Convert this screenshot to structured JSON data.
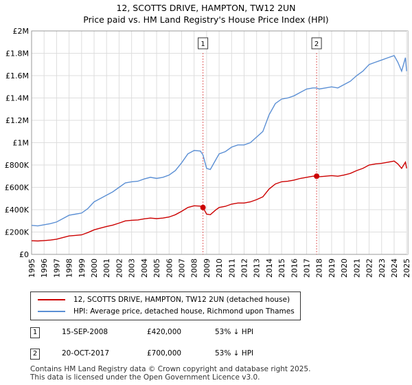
{
  "header": {
    "title": "12, SCOTTS DRIVE, HAMPTON, TW12 2UN",
    "subtitle": "Price paid vs. HM Land Registry's House Price Index (HPI)"
  },
  "legend": {
    "items": [
      {
        "label": "12, SCOTTS DRIVE, HAMPTON, TW12 2UN (detached house)",
        "color": "#cc0000"
      },
      {
        "label": "HPI: Average price, detached house, Richmond upon Thames",
        "color": "#5b8fd4"
      }
    ]
  },
  "transactions": [
    {
      "num": "1",
      "date": "15-SEP-2008",
      "price": "£420,000",
      "hpi": "53% ↓ HPI"
    },
    {
      "num": "2",
      "date": "20-OCT-2017",
      "price": "£700,000",
      "hpi": "53% ↓ HPI"
    }
  ],
  "footer": {
    "line1": "Contains HM Land Registry data © Crown copyright and database right 2025.",
    "line2": "This data is licensed under the Open Government Licence v3.0."
  },
  "colors": {
    "property": "#cc0000",
    "hpi": "#5b8fd4",
    "grid": "#dddddd",
    "marker_line": "#e06060"
  },
  "chart_data": {
    "type": "line",
    "title": "12, SCOTTS DRIVE, HAMPTON, TW12 2UN",
    "subtitle": "Price paid vs. HM Land Registry's House Price Index (HPI)",
    "xlabel": "",
    "ylabel": "",
    "xlim": [
      1995,
      2025.1
    ],
    "ylim": [
      0,
      2000000
    ],
    "yticks": [
      {
        "v": 0,
        "label": "£0"
      },
      {
        "v": 200000,
        "label": "£200K"
      },
      {
        "v": 400000,
        "label": "£400K"
      },
      {
        "v": 600000,
        "label": "£600K"
      },
      {
        "v": 800000,
        "label": "£800K"
      },
      {
        "v": 1000000,
        "label": "£1M"
      },
      {
        "v": 1200000,
        "label": "£1.2M"
      },
      {
        "v": 1400000,
        "label": "£1.4M"
      },
      {
        "v": 1600000,
        "label": "£1.6M"
      },
      {
        "v": 1800000,
        "label": "£1.8M"
      },
      {
        "v": 2000000,
        "label": "£2M"
      }
    ],
    "xticks": [
      "1995",
      "1996",
      "1997",
      "1998",
      "1999",
      "2000",
      "2001",
      "2002",
      "2003",
      "2004",
      "2005",
      "2006",
      "2007",
      "2008",
      "2009",
      "2010",
      "2011",
      "2012",
      "2013",
      "2014",
      "2015",
      "2016",
      "2017",
      "2018",
      "2019",
      "2020",
      "2021",
      "2022",
      "2023",
      "2024",
      "2025"
    ],
    "grid": true,
    "series": [
      {
        "name": "HPI: Average price, detached house, Richmond upon Thames",
        "color": "#5b8fd4",
        "points": [
          [
            1995.0,
            260000
          ],
          [
            1995.5,
            255000
          ],
          [
            1996.0,
            265000
          ],
          [
            1996.5,
            275000
          ],
          [
            1997.0,
            290000
          ],
          [
            1997.5,
            320000
          ],
          [
            1998.0,
            350000
          ],
          [
            1998.5,
            360000
          ],
          [
            1999.0,
            370000
          ],
          [
            1999.5,
            410000
          ],
          [
            2000.0,
            470000
          ],
          [
            2000.5,
            500000
          ],
          [
            2001.0,
            530000
          ],
          [
            2001.5,
            560000
          ],
          [
            2002.0,
            600000
          ],
          [
            2002.5,
            640000
          ],
          [
            2003.0,
            650000
          ],
          [
            2003.5,
            655000
          ],
          [
            2004.0,
            675000
          ],
          [
            2004.5,
            690000
          ],
          [
            2005.0,
            680000
          ],
          [
            2005.5,
            690000
          ],
          [
            2006.0,
            710000
          ],
          [
            2006.5,
            750000
          ],
          [
            2007.0,
            820000
          ],
          [
            2007.5,
            900000
          ],
          [
            2008.0,
            930000
          ],
          [
            2008.5,
            925000
          ],
          [
            2008.71,
            890000
          ],
          [
            2009.0,
            770000
          ],
          [
            2009.3,
            760000
          ],
          [
            2009.7,
            840000
          ],
          [
            2010.0,
            900000
          ],
          [
            2010.5,
            920000
          ],
          [
            2011.0,
            960000
          ],
          [
            2011.5,
            980000
          ],
          [
            2012.0,
            980000
          ],
          [
            2012.5,
            1000000
          ],
          [
            2013.0,
            1050000
          ],
          [
            2013.5,
            1100000
          ],
          [
            2014.0,
            1250000
          ],
          [
            2014.5,
            1350000
          ],
          [
            2015.0,
            1390000
          ],
          [
            2015.5,
            1400000
          ],
          [
            2016.0,
            1420000
          ],
          [
            2016.5,
            1450000
          ],
          [
            2017.0,
            1480000
          ],
          [
            2017.5,
            1490000
          ],
          [
            2017.8,
            1490000
          ],
          [
            2018.0,
            1480000
          ],
          [
            2018.5,
            1490000
          ],
          [
            2019.0,
            1500000
          ],
          [
            2019.5,
            1490000
          ],
          [
            2020.0,
            1520000
          ],
          [
            2020.5,
            1550000
          ],
          [
            2021.0,
            1600000
          ],
          [
            2021.5,
            1640000
          ],
          [
            2022.0,
            1700000
          ],
          [
            2022.5,
            1720000
          ],
          [
            2023.0,
            1740000
          ],
          [
            2023.5,
            1760000
          ],
          [
            2024.0,
            1780000
          ],
          [
            2024.3,
            1720000
          ],
          [
            2024.6,
            1640000
          ],
          [
            2024.9,
            1760000
          ],
          [
            2025.0,
            1640000
          ]
        ]
      },
      {
        "name": "12, SCOTTS DRIVE, HAMPTON, TW12 2UN (detached house)",
        "color": "#cc0000",
        "points": [
          [
            1995.0,
            122000
          ],
          [
            1995.5,
            120000
          ],
          [
            1996.0,
            124000
          ],
          [
            1996.5,
            128000
          ],
          [
            1997.0,
            136000
          ],
          [
            1997.5,
            150000
          ],
          [
            1998.0,
            165000
          ],
          [
            1998.5,
            170000
          ],
          [
            1999.0,
            175000
          ],
          [
            1999.5,
            195000
          ],
          [
            2000.0,
            220000
          ],
          [
            2000.5,
            235000
          ],
          [
            2001.0,
            250000
          ],
          [
            2001.5,
            262000
          ],
          [
            2002.0,
            280000
          ],
          [
            2002.5,
            300000
          ],
          [
            2003.0,
            305000
          ],
          [
            2003.5,
            308000
          ],
          [
            2004.0,
            318000
          ],
          [
            2004.5,
            325000
          ],
          [
            2005.0,
            320000
          ],
          [
            2005.5,
            325000
          ],
          [
            2006.0,
            335000
          ],
          [
            2006.5,
            355000
          ],
          [
            2007.0,
            385000
          ],
          [
            2007.5,
            420000
          ],
          [
            2008.0,
            435000
          ],
          [
            2008.5,
            432000
          ],
          [
            2008.71,
            420000
          ],
          [
            2009.0,
            360000
          ],
          [
            2009.3,
            355000
          ],
          [
            2009.7,
            395000
          ],
          [
            2010.0,
            420000
          ],
          [
            2010.5,
            430000
          ],
          [
            2011.0,
            450000
          ],
          [
            2011.5,
            460000
          ],
          [
            2012.0,
            460000
          ],
          [
            2012.5,
            470000
          ],
          [
            2013.0,
            490000
          ],
          [
            2013.5,
            515000
          ],
          [
            2014.0,
            585000
          ],
          [
            2014.5,
            630000
          ],
          [
            2015.0,
            650000
          ],
          [
            2015.5,
            655000
          ],
          [
            2016.0,
            665000
          ],
          [
            2016.5,
            680000
          ],
          [
            2017.0,
            690000
          ],
          [
            2017.5,
            700000
          ],
          [
            2017.8,
            700000
          ],
          [
            2018.0,
            695000
          ],
          [
            2018.5,
            700000
          ],
          [
            2019.0,
            705000
          ],
          [
            2019.5,
            700000
          ],
          [
            2020.0,
            710000
          ],
          [
            2020.5,
            725000
          ],
          [
            2021.0,
            750000
          ],
          [
            2021.5,
            770000
          ],
          [
            2022.0,
            800000
          ],
          [
            2022.5,
            810000
          ],
          [
            2023.0,
            815000
          ],
          [
            2023.5,
            825000
          ],
          [
            2024.0,
            835000
          ],
          [
            2024.3,
            810000
          ],
          [
            2024.6,
            770000
          ],
          [
            2024.9,
            825000
          ],
          [
            2025.0,
            770000
          ]
        ]
      }
    ],
    "sale_markers": [
      {
        "label": "1",
        "x": 2008.71,
        "y": 420000
      },
      {
        "label": "2",
        "x": 2017.8,
        "y": 700000
      }
    ]
  }
}
